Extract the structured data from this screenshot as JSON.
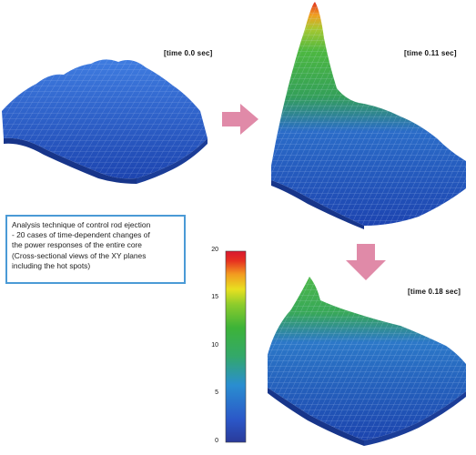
{
  "panels": [
    {
      "time_label": "[time 0.0 sec]"
    },
    {
      "time_label": "[time 0.11 sec]"
    },
    {
      "time_label": "[time 0.18 sec]"
    }
  ],
  "info_box": {
    "lines": [
      "Analysis technique of control rod ejection",
      "- 20 cases of time-dependent changes of",
      "the power responses of the entire core",
      "(Cross-sectional views of the XY planes",
      "including the hot spots)"
    ]
  },
  "colorbar": {
    "ticks": [
      "20",
      "15",
      "10",
      "5",
      "0"
    ],
    "range": [
      0,
      20
    ],
    "colors": [
      "#2a3a9a",
      "#2b58c8",
      "#2a8ed0",
      "#33a86a",
      "#3db338",
      "#8ccc2c",
      "#e8e020",
      "#f29a20",
      "#e63020",
      "#d81830"
    ]
  },
  "colors": {
    "arrow": "#e08aa8",
    "surface_low": "#2b5cc4",
    "border": "#4a9ad6"
  }
}
